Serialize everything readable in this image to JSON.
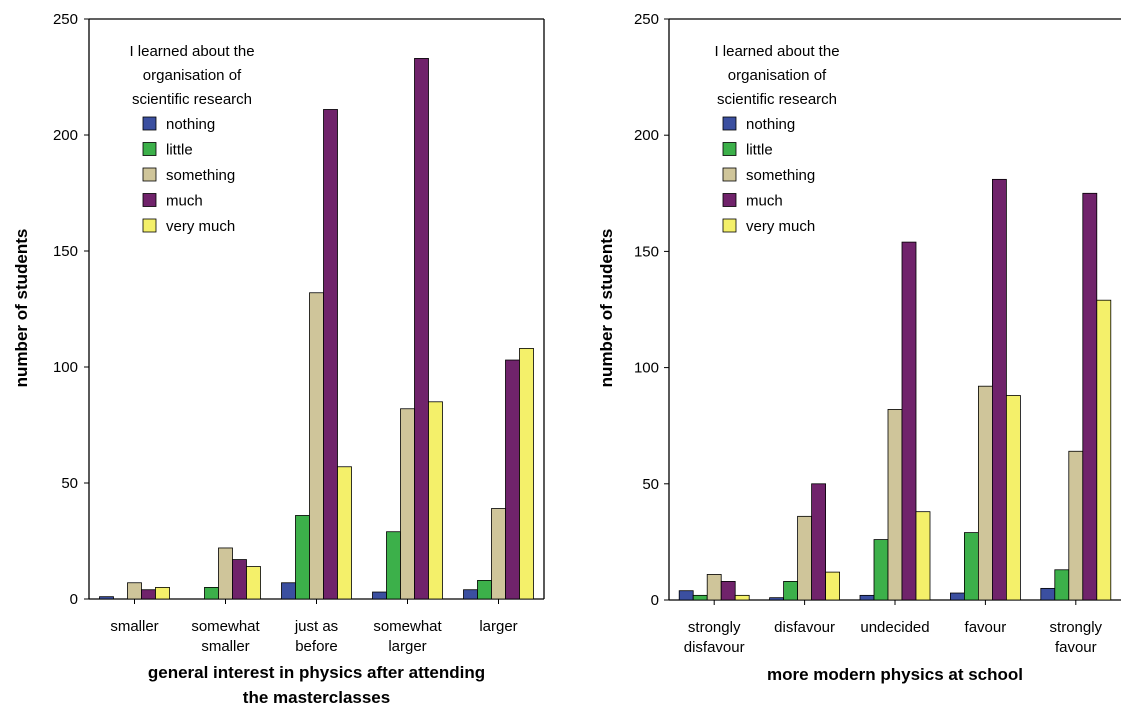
{
  "colors": {
    "nothing": "#3b4fa0",
    "little": "#3cb04a",
    "something": "#cfc59a",
    "much": "#70236b",
    "very_much": "#f4f06a"
  },
  "chart_data": [
    {
      "type": "bar",
      "xlabel_lines": [
        "general interest in physics after attending",
        "the masterclasses"
      ],
      "ylabel": "number of students",
      "ylim": [
        0,
        250
      ],
      "yticks": [
        0,
        50,
        100,
        150,
        200,
        250
      ],
      "grid": false,
      "legend": {
        "placement": "top-left",
        "title_lines": [
          "I learned about the",
          "organisation of",
          "scientific research"
        ]
      },
      "categories": [
        [
          "smaller"
        ],
        [
          "somewhat",
          "smaller"
        ],
        [
          "just as",
          "before"
        ],
        [
          "somewhat",
          "larger"
        ],
        [
          "larger"
        ]
      ],
      "series": [
        {
          "name": "nothing",
          "color_key": "nothing",
          "values": [
            1,
            0,
            7,
            3,
            4
          ]
        },
        {
          "name": "little",
          "color_key": "little",
          "values": [
            0,
            5,
            36,
            29,
            8
          ]
        },
        {
          "name": "something",
          "color_key": "something",
          "values": [
            7,
            22,
            132,
            82,
            39
          ]
        },
        {
          "name": "much",
          "color_key": "much",
          "values": [
            4,
            17,
            211,
            233,
            103
          ]
        },
        {
          "name": "very much",
          "color_key": "very_much",
          "values": [
            5,
            14,
            57,
            85,
            108
          ]
        }
      ]
    },
    {
      "type": "bar",
      "xlabel_lines": [
        "more modern physics at school"
      ],
      "ylabel": "number of students",
      "ylim": [
        0,
        250
      ],
      "yticks": [
        0,
        50,
        100,
        150,
        200,
        250
      ],
      "grid": false,
      "legend": {
        "placement": "top-left",
        "title_lines": [
          "I learned about the",
          "organisation of",
          "scientific research"
        ]
      },
      "categories": [
        [
          "strongly",
          "disfavour"
        ],
        [
          "disfavour"
        ],
        [
          "undecided"
        ],
        [
          "favour"
        ],
        [
          "strongly",
          "favour"
        ]
      ],
      "series": [
        {
          "name": "nothing",
          "color_key": "nothing",
          "values": [
            4,
            1,
            2,
            3,
            5
          ]
        },
        {
          "name": "little",
          "color_key": "little",
          "values": [
            2,
            8,
            26,
            29,
            13
          ]
        },
        {
          "name": "something",
          "color_key": "something",
          "values": [
            11,
            36,
            82,
            92,
            64
          ]
        },
        {
          "name": "much",
          "color_key": "much",
          "values": [
            8,
            50,
            154,
            181,
            175
          ]
        },
        {
          "name": "very much",
          "color_key": "very_much",
          "values": [
            2,
            12,
            38,
            88,
            129
          ]
        }
      ]
    }
  ]
}
